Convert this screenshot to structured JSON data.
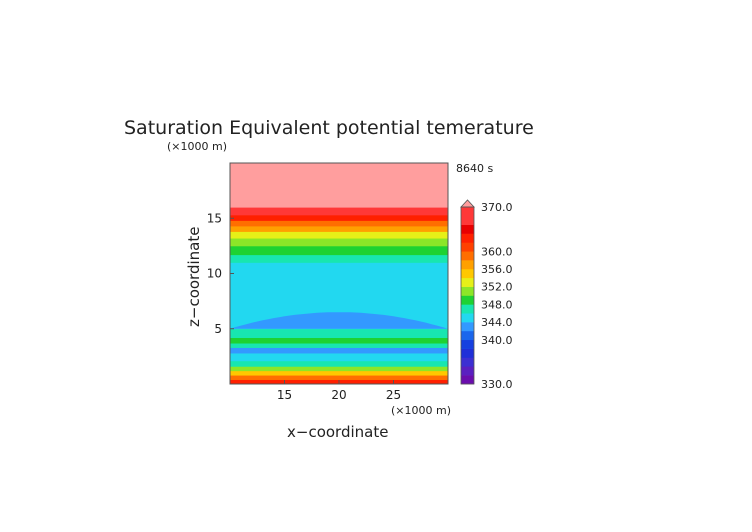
{
  "chart_data": {
    "type": "heatmap",
    "title": "Saturation Equivalent potential temerature",
    "xlabel": "x−coordinate",
    "ylabel": "z−coordinate",
    "x_unit": "(×1000 m)",
    "y_unit": "(×1000 m)",
    "time_label": "8640 s",
    "xlim": [
      10,
      30
    ],
    "ylim": [
      0,
      20
    ],
    "x_ticks": [
      15,
      20,
      25
    ],
    "y_ticks": [
      5,
      10,
      15
    ],
    "grid": false,
    "colorbar": {
      "range": [
        330,
        370
      ],
      "tick_values": [
        330,
        340,
        344,
        348,
        352,
        356,
        360,
        370
      ],
      "tick_labels": [
        "330.0",
        "340.0",
        "344.0",
        "348.0",
        "352.0",
        "356.0",
        "360.0",
        "370.0"
      ],
      "levels": [
        {
          "from": 330,
          "to": 332,
          "color": "#6a0dad"
        },
        {
          "from": 332,
          "to": 334,
          "color": "#5a1fc0"
        },
        {
          "from": 334,
          "to": 336,
          "color": "#3c2fd2"
        },
        {
          "from": 336,
          "to": 338,
          "color": "#1f2fd8"
        },
        {
          "from": 338,
          "to": 340,
          "color": "#1640e0"
        },
        {
          "from": 340,
          "to": 342,
          "color": "#1a66ec"
        },
        {
          "from": 342,
          "to": 344,
          "color": "#3399ff"
        },
        {
          "from": 344,
          "to": 346,
          "color": "#22d8f0"
        },
        {
          "from": 346,
          "to": 348,
          "color": "#18e6b0"
        },
        {
          "from": 348,
          "to": 350,
          "color": "#1ed232"
        },
        {
          "from": 350,
          "to": 352,
          "color": "#8ce628"
        },
        {
          "from": 352,
          "to": 354,
          "color": "#e6f018"
        },
        {
          "from": 354,
          "to": 356,
          "color": "#ffc800"
        },
        {
          "from": 356,
          "to": 358,
          "color": "#ffa000"
        },
        {
          "from": 358,
          "to": 360,
          "color": "#ff6e00"
        },
        {
          "from": 360,
          "to": 362,
          "color": "#ff4000"
        },
        {
          "from": 362,
          "to": 364,
          "color": "#ff2000"
        },
        {
          "from": 364,
          "to": 366,
          "color": "#e80000"
        },
        {
          "from": 366,
          "to": 370,
          "color": "#ff3838"
        },
        {
          "from": 370,
          "to": 380,
          "color": "#ff9e9e"
        }
      ]
    },
    "z_layers": [
      {
        "from": 0.0,
        "to": 0.4,
        "value": 362
      },
      {
        "from": 0.4,
        "to": 0.8,
        "value": 358
      },
      {
        "from": 0.8,
        "to": 1.2,
        "value": 354
      },
      {
        "from": 1.2,
        "to": 1.6,
        "value": 351
      },
      {
        "from": 1.6,
        "to": 2.1,
        "value": 347
      },
      {
        "from": 2.1,
        "to": 2.8,
        "value": 345
      },
      {
        "from": 2.8,
        "to": 3.3,
        "value": 343
      },
      {
        "from": 3.3,
        "to": 3.7,
        "value": 347
      },
      {
        "from": 3.7,
        "to": 4.2,
        "value": 349
      },
      {
        "from": 4.2,
        "to": 5.0,
        "value": 346
      },
      {
        "from": 5.0,
        "to": 11.0,
        "value": 345
      },
      {
        "from": 11.0,
        "to": 11.7,
        "value": 347
      },
      {
        "from": 11.7,
        "to": 12.5,
        "value": 349
      },
      {
        "from": 12.5,
        "to": 13.2,
        "value": 351
      },
      {
        "from": 13.2,
        "to": 13.8,
        "value": 353
      },
      {
        "from": 13.8,
        "to": 14.3,
        "value": 356
      },
      {
        "from": 14.3,
        "to": 14.8,
        "value": 359
      },
      {
        "from": 14.8,
        "to": 15.3,
        "value": 363
      },
      {
        "from": 15.3,
        "to": 16.0,
        "value": 367
      },
      {
        "from": 16.0,
        "to": 20.0,
        "value": 372
      }
    ],
    "dome": {
      "value": 343,
      "x_start": 10,
      "x_end": 30,
      "x_peak": 20,
      "z_base": 5.0,
      "z_peak": 6.5
    }
  }
}
